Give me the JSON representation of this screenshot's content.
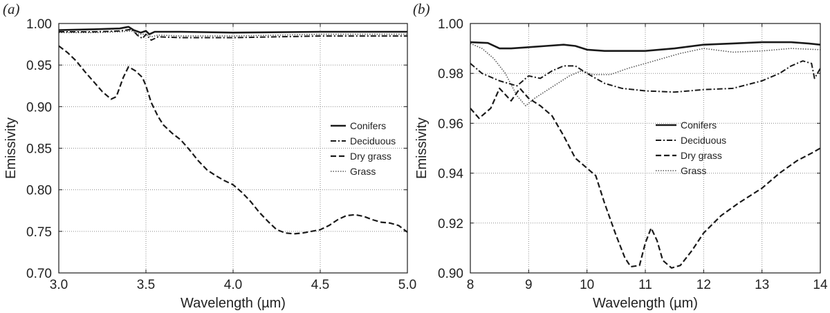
{
  "chart_data": [
    {
      "type": "line",
      "panel_label": "(a)",
      "xlabel": "Wavelength (µm)",
      "ylabel": "Emissivity",
      "xlim": [
        3.0,
        5.0
      ],
      "ylim": [
        0.7,
        1.0
      ],
      "x_ticks": [
        3.0,
        3.5,
        4.0,
        4.5,
        5.0
      ],
      "x_tick_labels": [
        "3.0",
        "3.5",
        "4.0",
        "4.5",
        "5.0"
      ],
      "y_ticks": [
        0.7,
        0.75,
        0.8,
        0.85,
        0.9,
        0.95,
        1.0
      ],
      "y_tick_labels": [
        "0.70",
        "0.75",
        "0.80",
        "0.85",
        "0.90",
        "0.95",
        "1.00"
      ],
      "grid": true,
      "legend_position": "center-right",
      "series": [
        {
          "name": "Conifers",
          "style": "solid",
          "points": [
            [
              3.0,
              0.992
            ],
            [
              3.2,
              0.993
            ],
            [
              3.35,
              0.994
            ],
            [
              3.4,
              0.996
            ],
            [
              3.43,
              0.992
            ],
            [
              3.47,
              0.989
            ],
            [
              3.5,
              0.991
            ],
            [
              3.52,
              0.987
            ],
            [
              3.55,
              0.99
            ],
            [
              3.7,
              0.99
            ],
            [
              4.0,
              0.989
            ],
            [
              4.5,
              0.99
            ],
            [
              5.0,
              0.99
            ]
          ]
        },
        {
          "name": "Deciduous",
          "style": "dashdot",
          "points": [
            [
              3.0,
              0.99
            ],
            [
              3.2,
              0.99
            ],
            [
              3.35,
              0.991
            ],
            [
              3.42,
              0.993
            ],
            [
              3.45,
              0.986
            ],
            [
              3.48,
              0.982
            ],
            [
              3.5,
              0.987
            ],
            [
              3.53,
              0.98
            ],
            [
              3.57,
              0.984
            ],
            [
              3.7,
              0.983
            ],
            [
              4.0,
              0.983
            ],
            [
              4.5,
              0.985
            ],
            [
              5.0,
              0.985
            ]
          ]
        },
        {
          "name": "Dry grass",
          "style": "dashed",
          "points": [
            [
              3.0,
              0.973
            ],
            [
              3.05,
              0.965
            ],
            [
              3.1,
              0.955
            ],
            [
              3.15,
              0.942
            ],
            [
              3.2,
              0.93
            ],
            [
              3.25,
              0.918
            ],
            [
              3.3,
              0.909
            ],
            [
              3.33,
              0.912
            ],
            [
              3.37,
              0.935
            ],
            [
              3.4,
              0.948
            ],
            [
              3.44,
              0.943
            ],
            [
              3.48,
              0.935
            ],
            [
              3.5,
              0.925
            ],
            [
              3.53,
              0.905
            ],
            [
              3.57,
              0.888
            ],
            [
              3.6,
              0.878
            ],
            [
              3.65,
              0.868
            ],
            [
              3.7,
              0.86
            ],
            [
              3.75,
              0.848
            ],
            [
              3.8,
              0.835
            ],
            [
              3.85,
              0.824
            ],
            [
              3.9,
              0.817
            ],
            [
              3.95,
              0.811
            ],
            [
              4.0,
              0.806
            ],
            [
              4.05,
              0.797
            ],
            [
              4.1,
              0.786
            ],
            [
              4.15,
              0.773
            ],
            [
              4.2,
              0.762
            ],
            [
              4.25,
              0.752
            ],
            [
              4.3,
              0.748
            ],
            [
              4.35,
              0.747
            ],
            [
              4.4,
              0.748
            ],
            [
              4.45,
              0.75
            ],
            [
              4.5,
              0.752
            ],
            [
              4.55,
              0.757
            ],
            [
              4.6,
              0.764
            ],
            [
              4.65,
              0.769
            ],
            [
              4.7,
              0.77
            ],
            [
              4.75,
              0.768
            ],
            [
              4.8,
              0.764
            ],
            [
              4.85,
              0.761
            ],
            [
              4.9,
              0.76
            ],
            [
              4.95,
              0.757
            ],
            [
              5.0,
              0.749
            ]
          ]
        },
        {
          "name": "Grass",
          "style": "dotted",
          "points": [
            [
              3.0,
              0.989
            ],
            [
              3.2,
              0.989
            ],
            [
              3.35,
              0.99
            ],
            [
              3.42,
              0.991
            ],
            [
              3.46,
              0.987
            ],
            [
              3.5,
              0.987
            ],
            [
              3.53,
              0.984
            ],
            [
              3.57,
              0.986
            ],
            [
              3.7,
              0.985
            ],
            [
              4.0,
              0.985
            ],
            [
              4.5,
              0.987
            ],
            [
              5.0,
              0.987
            ]
          ]
        }
      ]
    },
    {
      "type": "line",
      "panel_label": "(b)",
      "xlabel": "Wavelength (µm)",
      "ylabel": "Emissivity",
      "xlim": [
        8,
        14
      ],
      "ylim": [
        0.9,
        1.0
      ],
      "x_ticks": [
        8,
        9,
        10,
        11,
        12,
        13,
        14
      ],
      "x_tick_labels": [
        "8",
        "9",
        "10",
        "11",
        "12",
        "13",
        "14"
      ],
      "y_ticks": [
        0.9,
        0.92,
        0.94,
        0.96,
        0.98,
        1.0
      ],
      "y_tick_labels": [
        "0.90",
        "0.92",
        "0.94",
        "0.96",
        "0.98",
        "1.00"
      ],
      "grid": true,
      "legend_position": "center-right",
      "series": [
        {
          "name": "Conifers",
          "style": "solid",
          "points": [
            [
              8.0,
              0.9925
            ],
            [
              8.3,
              0.9922
            ],
            [
              8.5,
              0.99
            ],
            [
              8.7,
              0.99
            ],
            [
              9.0,
              0.9905
            ],
            [
              9.3,
              0.991
            ],
            [
              9.6,
              0.9915
            ],
            [
              9.8,
              0.991
            ],
            [
              10.0,
              0.9895
            ],
            [
              10.3,
              0.989
            ],
            [
              10.6,
              0.989
            ],
            [
              11.0,
              0.989
            ],
            [
              11.5,
              0.99
            ],
            [
              12.0,
              0.9915
            ],
            [
              12.5,
              0.992
            ],
            [
              13.0,
              0.9925
            ],
            [
              13.5,
              0.9925
            ],
            [
              13.8,
              0.992
            ],
            [
              14.0,
              0.9915
            ]
          ]
        },
        {
          "name": "Deciduous",
          "style": "dashdot",
          "points": [
            [
              8.0,
              0.984
            ],
            [
              8.2,
              0.98
            ],
            [
              8.5,
              0.977
            ],
            [
              8.8,
              0.975
            ],
            [
              9.0,
              0.979
            ],
            [
              9.2,
              0.978
            ],
            [
              9.4,
              0.981
            ],
            [
              9.6,
              0.983
            ],
            [
              9.8,
              0.983
            ],
            [
              10.0,
              0.98
            ],
            [
              10.3,
              0.976
            ],
            [
              10.6,
              0.974
            ],
            [
              11.0,
              0.973
            ],
            [
              11.5,
              0.9725
            ],
            [
              12.0,
              0.9735
            ],
            [
              12.5,
              0.974
            ],
            [
              13.0,
              0.977
            ],
            [
              13.3,
              0.98
            ],
            [
              13.5,
              0.983
            ],
            [
              13.7,
              0.985
            ],
            [
              13.85,
              0.984
            ],
            [
              13.9,
              0.978
            ],
            [
              14.0,
              0.982
            ]
          ]
        },
        {
          "name": "Dry grass",
          "style": "dashed",
          "points": [
            [
              8.0,
              0.966
            ],
            [
              8.15,
              0.962
            ],
            [
              8.35,
              0.966
            ],
            [
              8.5,
              0.974
            ],
            [
              8.7,
              0.969
            ],
            [
              8.85,
              0.974
            ],
            [
              9.0,
              0.97
            ],
            [
              9.2,
              0.967
            ],
            [
              9.4,
              0.963
            ],
            [
              9.6,
              0.955
            ],
            [
              9.8,
              0.946
            ],
            [
              10.0,
              0.942
            ],
            [
              10.15,
              0.939
            ],
            [
              10.3,
              0.928
            ],
            [
              10.5,
              0.915
            ],
            [
              10.65,
              0.906
            ],
            [
              10.75,
              0.9025
            ],
            [
              10.9,
              0.903
            ],
            [
              11.0,
              0.912
            ],
            [
              11.1,
              0.918
            ],
            [
              11.2,
              0.913
            ],
            [
              11.3,
              0.905
            ],
            [
              11.45,
              0.902
            ],
            [
              11.6,
              0.903
            ],
            [
              11.8,
              0.909
            ],
            [
              12.0,
              0.916
            ],
            [
              12.3,
              0.923
            ],
            [
              12.6,
              0.928
            ],
            [
              13.0,
              0.934
            ],
            [
              13.3,
              0.94
            ],
            [
              13.6,
              0.945
            ],
            [
              13.85,
              0.948
            ],
            [
              14.0,
              0.95
            ]
          ]
        },
        {
          "name": "Grass",
          "style": "dotted",
          "points": [
            [
              8.0,
              0.992
            ],
            [
              8.2,
              0.99
            ],
            [
              8.4,
              0.986
            ],
            [
              8.6,
              0.98
            ],
            [
              8.8,
              0.971
            ],
            [
              8.95,
              0.967
            ],
            [
              9.1,
              0.97
            ],
            [
              9.3,
              0.973
            ],
            [
              9.5,
              0.976
            ],
            [
              9.7,
              0.979
            ],
            [
              9.9,
              0.981
            ],
            [
              10.1,
              0.9795
            ],
            [
              10.4,
              0.9795
            ],
            [
              10.7,
              0.982
            ],
            [
              11.0,
              0.984
            ],
            [
              11.3,
              0.986
            ],
            [
              11.6,
              0.988
            ],
            [
              12.0,
              0.99
            ],
            [
              12.5,
              0.9885
            ],
            [
              13.0,
              0.989
            ],
            [
              13.5,
              0.99
            ],
            [
              14.0,
              0.9895
            ]
          ]
        }
      ]
    }
  ]
}
